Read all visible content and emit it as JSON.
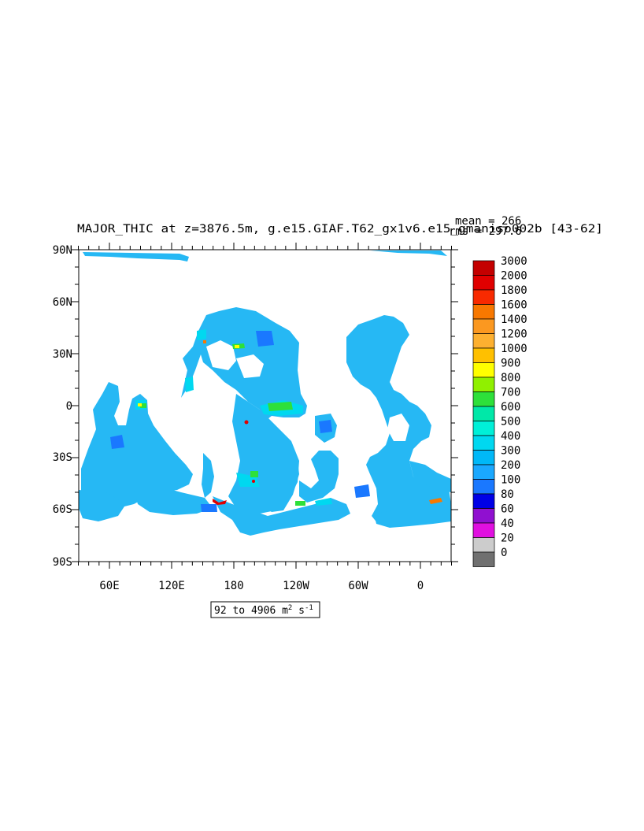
{
  "title": "MAJOR_THIC at z=3876.5m, g.e15.GIAF.T62_gx1v6.e15_gmaniso002b [43-62]",
  "stats": {
    "mean": "mean = 266",
    "rms": "rms = 297.6"
  },
  "range_label": {
    "prefix": "92 to 4906 m",
    "exp1": "2",
    "middle": " s",
    "exp2": "-1"
  },
  "y_axis_ticks": [
    "90N",
    "60N",
    "30N",
    "0",
    "30S",
    "60S",
    "90S"
  ],
  "x_axis_ticks": [
    "60E",
    "120E",
    "180",
    "120W",
    "60W",
    "0"
  ],
  "colorbar": {
    "labels": [
      "3000",
      "2000",
      "1800",
      "1600",
      "1400",
      "1200",
      "1000",
      "900",
      "800",
      "700",
      "600",
      "500",
      "400",
      "300",
      "200",
      "100",
      "80",
      "60",
      "40",
      "20",
      "0"
    ],
    "colors": [
      "#c40000",
      "#e00000",
      "#f82a00",
      "#f87800",
      "#fb9820",
      "#fdb030",
      "#ffc000",
      "#ffff00",
      "#90f000",
      "#2ee03a",
      "#00e8a8",
      "#00f0d8",
      "#00d8f0",
      "#00b8f8",
      "#1aa8ff",
      "#1a78ff",
      "#0000e6",
      "#9010d0",
      "#e010e0",
      "#cccccc",
      "#707070"
    ]
  },
  "map_colors": {
    "ocean_main": "#26b8f4",
    "ocean_bright": "#00d8f0",
    "ocean_deep": "#1a78ff",
    "green": "#2ee03a",
    "teal": "#00e8a8",
    "yellow": "#ffff00",
    "orange": "#f87800",
    "red": "#e00000"
  }
}
